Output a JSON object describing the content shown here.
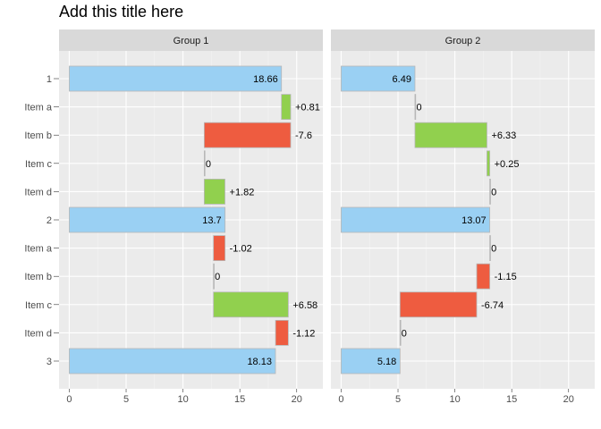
{
  "chart_data": {
    "type": "bar",
    "title": "Add this title here",
    "subtitle": "",
    "xlabel": "",
    "ylabel": "",
    "orientation": "horizontal",
    "style": "waterfall",
    "xlim": [
      -0.9,
      22.3
    ],
    "x_ticks": [
      0,
      5,
      10,
      15,
      20
    ],
    "grid": true,
    "legend": "none",
    "row_labels": [
      "1",
      "Item a",
      "Item b",
      "Item c",
      "Item d",
      "2",
      "Item a",
      "Item b",
      "Item c",
      "Item d",
      "3"
    ],
    "colors": {
      "total": "#9ad0f3",
      "increase": "#91d04e",
      "decrease": "#ee5c40",
      "panel_bg": "#ebebeb",
      "strip_bg": "#d9d9d9",
      "grid_major": "#ffffff",
      "grid_minor": "#f4f4f4",
      "bar_outline": "#b7b7b7",
      "axis_text": "#4d4d4d"
    },
    "panels": [
      {
        "name": "Group 1",
        "bars": [
          {
            "kind": "total",
            "start": 0,
            "end": 18.66,
            "label": "18.66"
          },
          {
            "kind": "increase",
            "start": 18.66,
            "end": 19.47,
            "label": "+0.81"
          },
          {
            "kind": "decrease",
            "start": 19.47,
            "end": 11.87,
            "label": "-7.6"
          },
          {
            "kind": "zero",
            "start": 11.87,
            "end": 11.87,
            "label": "0"
          },
          {
            "kind": "increase",
            "start": 11.87,
            "end": 13.69,
            "label": "+1.82"
          },
          {
            "kind": "total",
            "start": 0,
            "end": 13.7,
            "label": "13.7"
          },
          {
            "kind": "decrease",
            "start": 13.7,
            "end": 12.68,
            "label": "-1.02"
          },
          {
            "kind": "zero",
            "start": 12.68,
            "end": 12.68,
            "label": "0"
          },
          {
            "kind": "increase",
            "start": 12.68,
            "end": 19.26,
            "label": "+6.58"
          },
          {
            "kind": "decrease",
            "start": 19.26,
            "end": 18.14,
            "label": "-1.12"
          },
          {
            "kind": "total",
            "start": 0,
            "end": 18.13,
            "label": "18.13"
          }
        ]
      },
      {
        "name": "Group 2",
        "bars": [
          {
            "kind": "total",
            "start": 0,
            "end": 6.49,
            "label": "6.49"
          },
          {
            "kind": "zero",
            "start": 6.49,
            "end": 6.49,
            "label": "0"
          },
          {
            "kind": "increase",
            "start": 6.49,
            "end": 12.82,
            "label": "+6.33"
          },
          {
            "kind": "increase",
            "start": 12.82,
            "end": 13.07,
            "label": "+0.25"
          },
          {
            "kind": "zero",
            "start": 13.07,
            "end": 13.07,
            "label": "0"
          },
          {
            "kind": "total",
            "start": 0,
            "end": 13.07,
            "label": "13.07"
          },
          {
            "kind": "zero",
            "start": 13.07,
            "end": 13.07,
            "label": "0"
          },
          {
            "kind": "decrease",
            "start": 13.07,
            "end": 11.92,
            "label": "-1.15"
          },
          {
            "kind": "decrease",
            "start": 11.92,
            "end": 5.18,
            "label": "-6.74"
          },
          {
            "kind": "zero",
            "start": 5.18,
            "end": 5.18,
            "label": "0"
          },
          {
            "kind": "total",
            "start": 0,
            "end": 5.18,
            "label": "5.18"
          }
        ]
      }
    ]
  }
}
